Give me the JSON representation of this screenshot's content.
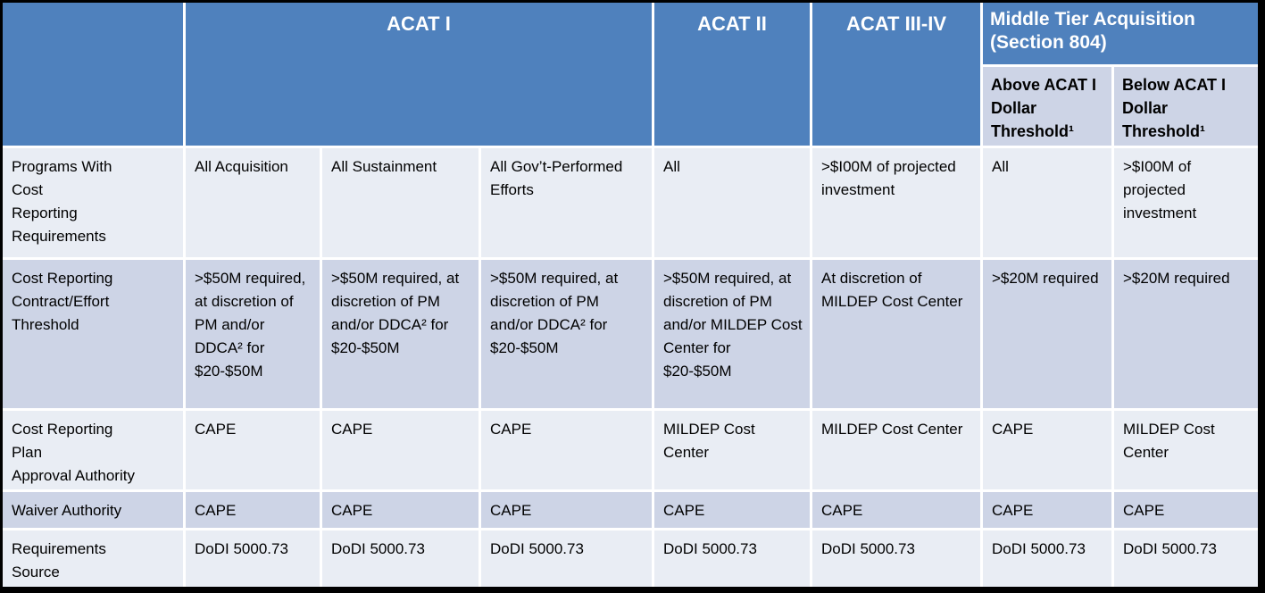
{
  "table": {
    "header": {
      "corner_label": "",
      "groups": [
        {
          "label": "ACAT I"
        },
        {
          "label": "ACAT II"
        },
        {
          "label": "ACAT III-IV"
        },
        {
          "label": "Middle Tier Acquisition (Section 804)"
        }
      ],
      "subheaders": [
        {
          "label": "Above ACAT I Dollar Threshold¹"
        },
        {
          "label": "Below ACAT I Dollar Threshold¹"
        }
      ]
    },
    "rows": [
      {
        "label": "Programs With\nCost\nReporting\nRequirements",
        "cells": [
          "All Acquisition",
          "All Sustainment",
          "All Gov’t-Performed Efforts",
          "All",
          ">$I00M of projected investment",
          "All",
          ">$I00M of projected investment"
        ]
      },
      {
        "label": "Cost Reporting\nContract/Effort\nThreshold",
        "cells": [
          ">$50M required, at discretion of PM and/or DDCA² for $20-$50M",
          ">$50M required, at discretion of PM and/or DDCA² for $20-$50M",
          ">$50M required, at discretion of PM and/or DDCA² for $20-$50M",
          ">$50M required, at discretion of PM and/or MILDEP Cost Center for $20-$50M",
          "At discretion of MILDEP Cost Center",
          ">$20M required",
          ">$20M required"
        ]
      },
      {
        "label": "Cost Reporting\nPlan\nApproval Authority",
        "cells": [
          "CAPE",
          "CAPE",
          "CAPE",
          "MILDEP Cost Center",
          "MILDEP Cost Center",
          "CAPE",
          "MILDEP Cost Center"
        ]
      },
      {
        "label": "Waiver Authority",
        "cells": [
          "CAPE",
          "CAPE",
          "CAPE",
          "CAPE",
          "CAPE",
          "CAPE",
          "CAPE"
        ]
      },
      {
        "label": "Requirements\nSource",
        "cells": [
          "DoDI 5000.73",
          "DoDI 5000.73",
          "DoDI 5000.73",
          "DoDI 5000.73",
          "DoDI 5000.73",
          "DoDI 5000.73",
          "DoDI 5000.73"
        ]
      }
    ],
    "colors": {
      "header_blue": "#4F81BD",
      "row_light": "#E9EDF4",
      "row_dark": "#CDD4E6",
      "outer_border": "#000000",
      "header_text": "#FFFFFF",
      "body_text": "#000000"
    }
  }
}
